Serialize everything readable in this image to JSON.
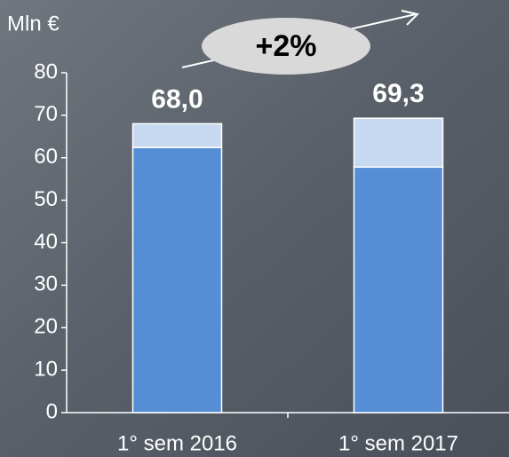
{
  "chart_data": {
    "type": "stacked_bar",
    "ylabel": "Mln €",
    "annotation": "+2%",
    "categories": [
      "1° sem 2016",
      "1° sem 2017"
    ],
    "series": [
      {
        "color": "#558ed5",
        "values": [
          62.4,
          57.8
        ]
      },
      {
        "color": "#c6d9f1",
        "values": [
          5.6,
          11.5
        ]
      }
    ],
    "totals": [
      68.0,
      69.3
    ],
    "total_labels": [
      "68,0",
      "69,3"
    ],
    "ylim": [
      0,
      80
    ],
    "yticks": [
      0,
      10,
      20,
      30,
      40,
      50,
      60,
      70,
      80
    ],
    "grid": false
  }
}
